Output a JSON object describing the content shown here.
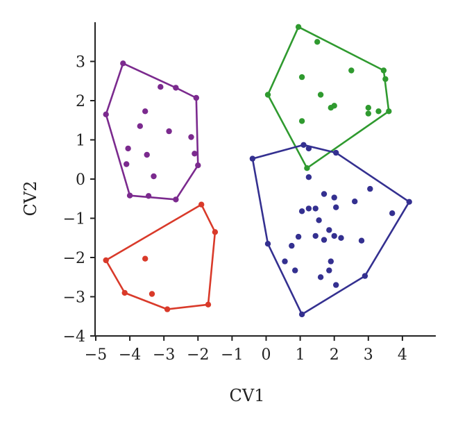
{
  "chart_data": {
    "type": "scatter",
    "title": "",
    "xlabel": "CV1",
    "ylabel": "CV2",
    "xlim": [
      -5,
      5
    ],
    "ylim": [
      -4,
      4
    ],
    "x_ticks": [
      "−5",
      "−4",
      "−3",
      "−2",
      "−1",
      "0",
      "1",
      "2",
      "3",
      "4"
    ],
    "y_ticks": [
      "−4",
      "−3",
      "−2",
      "−1",
      "0",
      "1",
      "2",
      "3"
    ],
    "grid": false,
    "legend": "none",
    "series": [
      {
        "color": "#7b2a8e",
        "hull": [
          [
            -4.2,
            2.95
          ],
          [
            -2.65,
            2.33
          ],
          [
            -2.05,
            2.07
          ],
          [
            -2.0,
            0.35
          ],
          [
            -2.65,
            -0.52
          ],
          [
            -4.0,
            -0.42
          ],
          [
            -4.7,
            1.65
          ]
        ],
        "points": [
          [
            -4.2,
            2.95
          ],
          [
            -2.65,
            2.33
          ],
          [
            -2.05,
            2.07
          ],
          [
            -2.0,
            0.35
          ],
          [
            -2.65,
            -0.52
          ],
          [
            -4.0,
            -0.42
          ],
          [
            -4.7,
            1.65
          ],
          [
            -3.1,
            2.35
          ],
          [
            -3.55,
            1.73
          ],
          [
            -3.7,
            1.35
          ],
          [
            -2.85,
            1.22
          ],
          [
            -2.2,
            1.07
          ],
          [
            -4.05,
            0.78
          ],
          [
            -3.5,
            0.62
          ],
          [
            -2.1,
            0.65
          ],
          [
            -4.1,
            0.38
          ],
          [
            -3.3,
            0.07
          ],
          [
            -3.45,
            -0.43
          ]
        ]
      },
      {
        "color": "#2f9a2f",
        "hull": [
          [
            0.95,
            3.88
          ],
          [
            3.45,
            2.77
          ],
          [
            3.6,
            1.73
          ],
          [
            1.2,
            0.28
          ],
          [
            0.05,
            2.15
          ]
        ],
        "points": [
          [
            0.95,
            3.88
          ],
          [
            3.45,
            2.77
          ],
          [
            3.6,
            1.73
          ],
          [
            1.2,
            0.28
          ],
          [
            0.05,
            2.15
          ],
          [
            1.5,
            3.5
          ],
          [
            2.5,
            2.77
          ],
          [
            1.05,
            2.6
          ],
          [
            3.5,
            2.55
          ],
          [
            1.6,
            2.15
          ],
          [
            2.0,
            1.87
          ],
          [
            1.9,
            1.82
          ],
          [
            3.0,
            1.82
          ],
          [
            3.3,
            1.73
          ],
          [
            3.0,
            1.67
          ],
          [
            1.05,
            1.48
          ]
        ]
      },
      {
        "color": "#343090",
        "hull": [
          [
            -0.4,
            0.52
          ],
          [
            1.1,
            0.87
          ],
          [
            2.05,
            0.67
          ],
          [
            4.2,
            -0.58
          ],
          [
            2.9,
            -2.47
          ],
          [
            1.05,
            -3.45
          ],
          [
            0.05,
            -1.65
          ]
        ],
        "points": [
          [
            -0.4,
            0.52
          ],
          [
            1.1,
            0.87
          ],
          [
            2.05,
            0.67
          ],
          [
            4.2,
            -0.58
          ],
          [
            2.9,
            -2.47
          ],
          [
            1.05,
            -3.45
          ],
          [
            0.05,
            -1.65
          ],
          [
            1.25,
            0.78
          ],
          [
            1.25,
            0.05
          ],
          [
            1.7,
            -0.38
          ],
          [
            2.0,
            -0.47
          ],
          [
            1.25,
            -0.75
          ],
          [
            2.6,
            -0.57
          ],
          [
            3.05,
            -0.25
          ],
          [
            1.45,
            -0.75
          ],
          [
            1.05,
            -0.82
          ],
          [
            2.05,
            -0.72
          ],
          [
            3.7,
            -0.87
          ],
          [
            1.55,
            -1.05
          ],
          [
            1.85,
            -1.3
          ],
          [
            1.45,
            -1.45
          ],
          [
            2.0,
            -1.45
          ],
          [
            2.2,
            -1.5
          ],
          [
            1.7,
            -1.55
          ],
          [
            0.95,
            -1.47
          ],
          [
            0.75,
            -1.7
          ],
          [
            2.8,
            -1.57
          ],
          [
            0.55,
            -2.1
          ],
          [
            1.9,
            -2.1
          ],
          [
            0.85,
            -2.33
          ],
          [
            1.85,
            -2.33
          ],
          [
            1.6,
            -2.5
          ],
          [
            2.05,
            -2.7
          ]
        ]
      },
      {
        "color": "#d93a2a",
        "hull": [
          [
            -1.9,
            -0.65
          ],
          [
            -1.5,
            -1.35
          ],
          [
            -1.7,
            -3.2
          ],
          [
            -2.9,
            -3.32
          ],
          [
            -4.15,
            -2.9
          ],
          [
            -4.7,
            -2.07
          ]
        ],
        "points": [
          [
            -1.9,
            -0.65
          ],
          [
            -1.5,
            -1.35
          ],
          [
            -1.7,
            -3.2
          ],
          [
            -2.9,
            -3.32
          ],
          [
            -4.15,
            -2.9
          ],
          [
            -4.7,
            -2.07
          ],
          [
            -3.55,
            -2.03
          ],
          [
            -3.35,
            -2.93
          ]
        ]
      }
    ]
  }
}
